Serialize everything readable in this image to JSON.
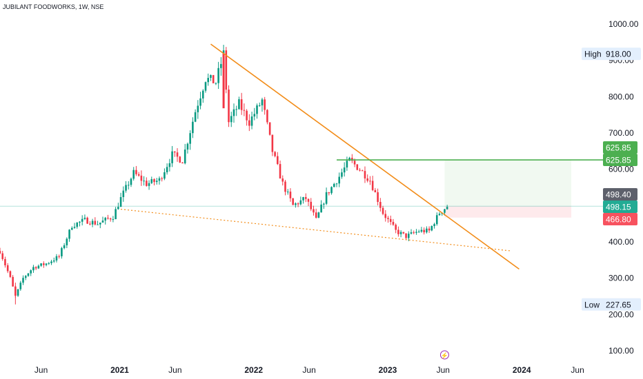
{
  "header": {
    "symbol_title": "JUBILANT FOODWORKS, 1W, NSE"
  },
  "colors": {
    "up": "#089981",
    "down": "#f23645",
    "trend": "#f28c18",
    "resistance": "#4caf50",
    "last": "#22ab94",
    "stop": "#f7525f",
    "target": "#4caf50",
    "avg": "#5d606b"
  },
  "chart_data": {
    "type": "candlestick",
    "title": "JUBILANT FOODWORKS, 1W, NSE",
    "y_axis": {
      "position": "right",
      "ticks": [
        100,
        200,
        300,
        400,
        500,
        600,
        700,
        800,
        900,
        1000
      ],
      "tick_labels": [
        "100.00",
        "200.00",
        "300.00",
        "400.00",
        "600.00",
        "700.00",
        "800.00",
        "900.00",
        "1000.00"
      ]
    },
    "ylim": [
      70,
      1010
    ],
    "x_axis": {
      "ticks": [
        {
          "label": "Jun",
          "date": "2020-06-01"
        },
        {
          "label": "2021",
          "date": "2021-01-01"
        },
        {
          "label": "Jun",
          "date": "2021-06-01"
        },
        {
          "label": "2022",
          "date": "2022-01-01"
        },
        {
          "label": "Jun",
          "date": "2022-06-01"
        },
        {
          "label": "2023",
          "date": "2023-01-01"
        },
        {
          "label": "Jun",
          "date": "2023-06-01"
        },
        {
          "label": "2024",
          "date": "2024-01-01"
        },
        {
          "label": "Jun",
          "date": "2024-06-01"
        }
      ]
    },
    "xlim": [
      "2020-02-10",
      "2024-08-15"
    ],
    "price_path": [
      [
        "2020-02-10",
        375
      ],
      [
        "2020-03-09",
        300
      ],
      [
        "2020-03-23",
        250
      ],
      [
        "2020-04-13",
        300
      ],
      [
        "2020-05-11",
        330
      ],
      [
        "2020-06-15",
        340
      ],
      [
        "2020-07-20",
        360
      ],
      [
        "2020-08-24",
        445
      ],
      [
        "2020-09-28",
        460
      ],
      [
        "2020-11-02",
        450
      ],
      [
        "2020-12-14",
        470
      ],
      [
        "2021-01-04",
        520
      ],
      [
        "2021-02-08",
        590
      ],
      [
        "2021-03-15",
        560
      ],
      [
        "2021-04-19",
        570
      ],
      [
        "2021-05-24",
        640
      ],
      [
        "2021-06-21",
        625
      ],
      [
        "2021-07-26",
        760
      ],
      [
        "2021-08-23",
        850
      ],
      [
        "2021-09-20",
        840
      ],
      [
        "2021-10-11",
        918
      ],
      [
        "2021-10-25",
        730
      ],
      [
        "2021-11-22",
        780
      ],
      [
        "2021-12-20",
        730
      ],
      [
        "2022-01-24",
        790
      ],
      [
        "2022-02-21",
        650
      ],
      [
        "2022-03-21",
        560
      ],
      [
        "2022-04-18",
        500
      ],
      [
        "2022-05-23",
        520
      ],
      [
        "2022-06-20",
        460
      ],
      [
        "2022-07-18",
        530
      ],
      [
        "2022-08-22",
        580
      ],
      [
        "2022-09-19",
        625
      ],
      [
        "2022-10-17",
        600
      ],
      [
        "2022-11-14",
        570
      ],
      [
        "2022-12-19",
        480
      ],
      [
        "2023-01-23",
        430
      ],
      [
        "2023-02-20",
        415
      ],
      [
        "2023-03-27",
        430
      ],
      [
        "2023-04-24",
        430
      ],
      [
        "2023-05-22",
        480
      ],
      [
        "2023-06-12",
        498.15
      ]
    ],
    "lows_marked": [
      [
        "2020-03-23",
        227.65
      ]
    ],
    "highs_marked": [
      [
        "2021-10-11",
        918.0
      ]
    ],
    "lines": [
      {
        "name": "descending-trendline",
        "style": "solid",
        "from": [
          "2021-09-06",
          945
        ],
        "to": [
          "2023-12-25",
          325
        ]
      },
      {
        "name": "support-trendline",
        "style": "dotted",
        "from": [
          "2021-01-04",
          490
        ],
        "to": [
          "2023-12-04",
          375
        ]
      },
      {
        "name": "resistance-line",
        "style": "solid",
        "from": [
          "2022-08-15",
          625.85
        ],
        "to": [
          "2024-08-15",
          625.85
        ]
      }
    ],
    "position": {
      "entry": 498.4,
      "target": 625.85,
      "stop": 466.8,
      "from": "2023-06-05",
      "to": "2024-05-15"
    },
    "price_labels": {
      "high": {
        "label": "High",
        "value": "918.00"
      },
      "low": {
        "label": "Low",
        "value": "227.65"
      },
      "target": "625.85",
      "resistance": "625.85",
      "entry": "498.40",
      "last": "498.15",
      "stop": "466.80"
    },
    "last_price": 498.15,
    "event_marker": {
      "date": "2023-06-05",
      "icon": "lightning-icon",
      "glyph": "⚡"
    },
    "grid": false,
    "legend": "none"
  }
}
